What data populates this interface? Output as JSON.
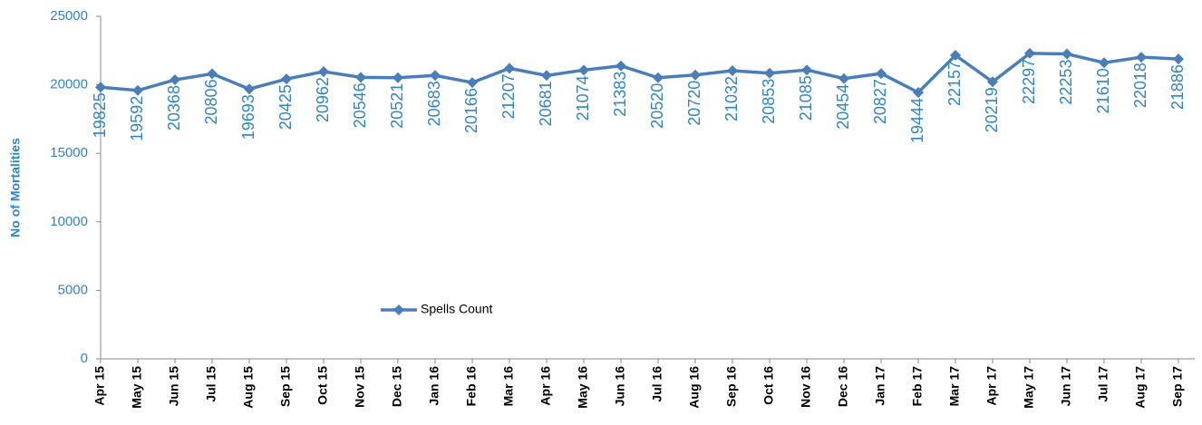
{
  "chart_data": {
    "type": "line",
    "y_label": "No of Mortalities",
    "categories": [
      "Apr 15",
      "May 15",
      "Jun 15",
      "Jul 15",
      "Aug 15",
      "Sep 15",
      "Oct 15",
      "Nov 15",
      "Dec 15",
      "Jan 16",
      "Feb 16",
      "Mar 16",
      "Apr 16",
      "May 16",
      "Jun 16",
      "Jul 16",
      "Aug 16",
      "Sep 16",
      "Oct 16",
      "Nov 16",
      "Dec 16",
      "Jan 17",
      "Feb 17",
      "Mar 17",
      "Apr 17",
      "May 17",
      "Jun 17",
      "Jul 17",
      "Aug 17",
      "Sep 17"
    ],
    "series": [
      {
        "name": "Spells Count",
        "color": "#4a7ebb",
        "values": [
          19825,
          19592,
          20368,
          20806,
          19693,
          20425,
          20962,
          20546,
          20521,
          20683,
          20166,
          21207,
          20681,
          21074,
          21383,
          20520,
          20720,
          21032,
          20853,
          21085,
          20454,
          20827,
          19444,
          22157,
          20219,
          22297,
          22253,
          21610,
          22018,
          21886
        ]
      }
    ],
    "ylim": [
      0,
      25000
    ],
    "yticks": [
      0,
      5000,
      10000,
      15000,
      20000,
      25000
    ],
    "grid": false,
    "data_labels": true
  }
}
